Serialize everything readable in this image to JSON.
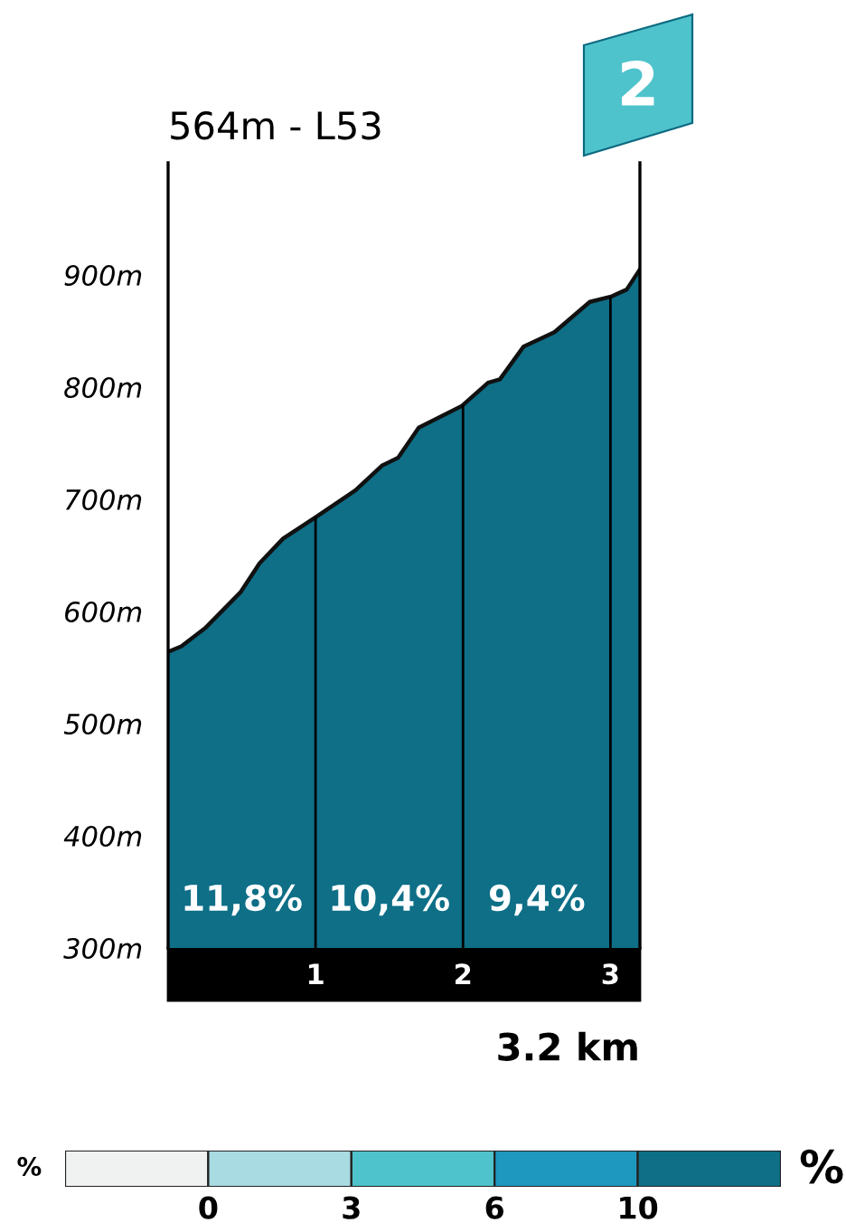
{
  "chart_data": [
    {
      "type": "area",
      "title": "564m - L53",
      "xlabel": "3.2 km",
      "x": [
        0,
        0.09,
        0.25,
        0.49,
        0.62,
        0.78,
        1.0,
        1.27,
        1.45,
        1.56,
        1.7,
        1.99,
        2.17,
        2.25,
        2.41,
        2.62,
        2.86,
        3.01,
        3.11,
        3.2
      ],
      "series": [
        {
          "color": "#0e6f87",
          "values": [
            564,
            569,
            585,
            617,
            643,
            665,
            684,
            708,
            730,
            737,
            764,
            783,
            804,
            807,
            836,
            849,
            876,
            881,
            887,
            905
          ]
        }
      ],
      "xlim": [
        0,
        3.2
      ],
      "xticks": [
        1,
        2,
        3
      ],
      "ylim": [
        300,
        1000
      ],
      "yticks": [
        {
          "value": 300,
          "label": "300m"
        },
        {
          "value": 400,
          "label": "400m"
        },
        {
          "value": 500,
          "label": "500m"
        },
        {
          "value": 600,
          "label": "600m"
        },
        {
          "value": 700,
          "label": "700m"
        },
        {
          "value": 800,
          "label": "800m"
        },
        {
          "value": 900,
          "label": "900m"
        }
      ],
      "ref_lines": [
        {
          "axis": "x",
          "value": 1,
          "color": "#000000"
        },
        {
          "axis": "x",
          "value": 2,
          "color": "#000000"
        },
        {
          "axis": "x",
          "value": 3,
          "color": "#000000"
        }
      ],
      "annotations": [
        "11,8%",
        "10,4%",
        "9,4%",
        "2"
      ],
      "grid": false,
      "legend": false
    },
    {
      "type": "other",
      "colors": [
        "#f0f1f1",
        "#a8dbe2",
        "#4fc3cc",
        "#1f98c0",
        "#0e6f87"
      ],
      "annotations": [
        "%",
        "0",
        "3",
        "6",
        "10",
        "%"
      ]
    }
  ]
}
